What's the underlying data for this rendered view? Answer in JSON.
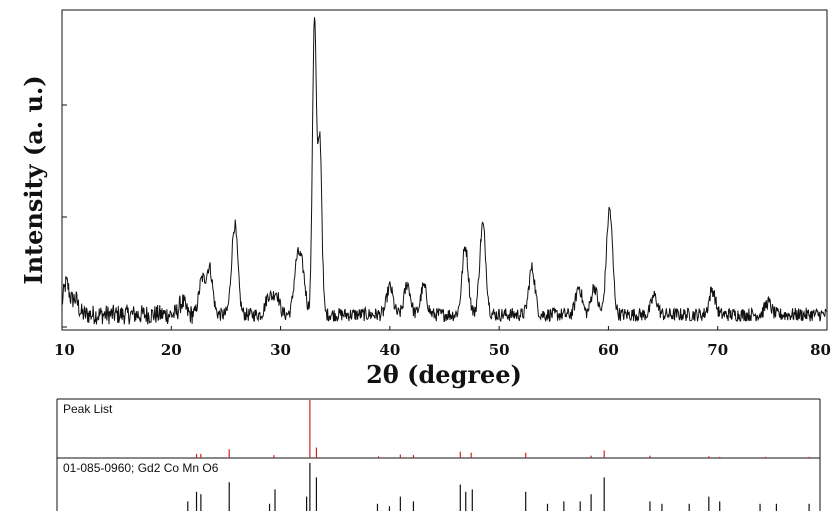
{
  "chart_data": [
    {
      "type": "line",
      "title": "",
      "xlabel": "2θ (degree)",
      "ylabel": "Intensity (a. u.)",
      "xlim": [
        10,
        80
      ],
      "ylim": [
        0,
        100
      ],
      "xticks": [
        "10",
        "20",
        "30",
        "40",
        "50",
        "60",
        "70",
        "80"
      ],
      "yticks_labeled": false,
      "grid": false,
      "legend": "none",
      "series": [
        {
          "color": "#111111",
          "baseline": 4,
          "peaks": [
            {
              "x": 10.4,
              "y": 14
            },
            {
              "x": 11.2,
              "y": 9
            },
            {
              "x": 21.0,
              "y": 8
            },
            {
              "x": 22.8,
              "y": 15
            },
            {
              "x": 23.5,
              "y": 19
            },
            {
              "x": 25.8,
              "y": 33
            },
            {
              "x": 28.9,
              "y": 10
            },
            {
              "x": 29.6,
              "y": 11
            },
            {
              "x": 31.5,
              "y": 20
            },
            {
              "x": 32.0,
              "y": 17
            },
            {
              "x": 33.1,
              "y": 100
            },
            {
              "x": 33.6,
              "y": 60
            },
            {
              "x": 40.0,
              "y": 13
            },
            {
              "x": 41.6,
              "y": 14
            },
            {
              "x": 43.1,
              "y": 13
            },
            {
              "x": 46.9,
              "y": 26
            },
            {
              "x": 48.5,
              "y": 33
            },
            {
              "x": 53.0,
              "y": 19
            },
            {
              "x": 57.3,
              "y": 13
            },
            {
              "x": 58.7,
              "y": 13
            },
            {
              "x": 60.1,
              "y": 38
            },
            {
              "x": 64.2,
              "y": 10
            },
            {
              "x": 69.5,
              "y": 12
            },
            {
              "x": 74.6,
              "y": 8
            }
          ]
        }
      ]
    },
    {
      "type": "bar",
      "panel_label": "Peak List",
      "xlim": [
        10,
        80
      ],
      "color": "#d22020",
      "peaks_x": [
        22.8,
        23.2,
        25.8,
        29.9,
        33.2,
        33.8,
        39.5,
        41.5,
        42.7,
        47.0,
        48.0,
        53.0,
        59.0,
        60.2,
        64.4,
        69.8,
        70.8,
        75.0,
        79.0
      ],
      "peaks_y": [
        7,
        7,
        15,
        5,
        100,
        18,
        3,
        6,
        5,
        11,
        9,
        9,
        4,
        13,
        4,
        3,
        2,
        2,
        2
      ]
    },
    {
      "type": "bar",
      "panel_label": "01-085-0960; Gd2 Co Mn O6",
      "xlim": [
        10,
        80
      ],
      "color": "#111111",
      "peaks_x": [
        22.0,
        22.8,
        23.2,
        25.8,
        29.5,
        30.0,
        32.9,
        33.2,
        33.8,
        39.4,
        40.5,
        41.5,
        42.7,
        47.0,
        47.5,
        48.1,
        53.0,
        55.0,
        56.5,
        58.0,
        59.0,
        60.2,
        64.4,
        65.5,
        68.0,
        69.8,
        70.8,
        74.5,
        76.0,
        79.0
      ],
      "peaks_y": [
        20,
        40,
        35,
        60,
        15,
        45,
        30,
        100,
        70,
        15,
        10,
        30,
        20,
        55,
        40,
        45,
        40,
        15,
        20,
        20,
        35,
        70,
        20,
        15,
        15,
        30,
        20,
        15,
        15,
        15
      ]
    }
  ]
}
